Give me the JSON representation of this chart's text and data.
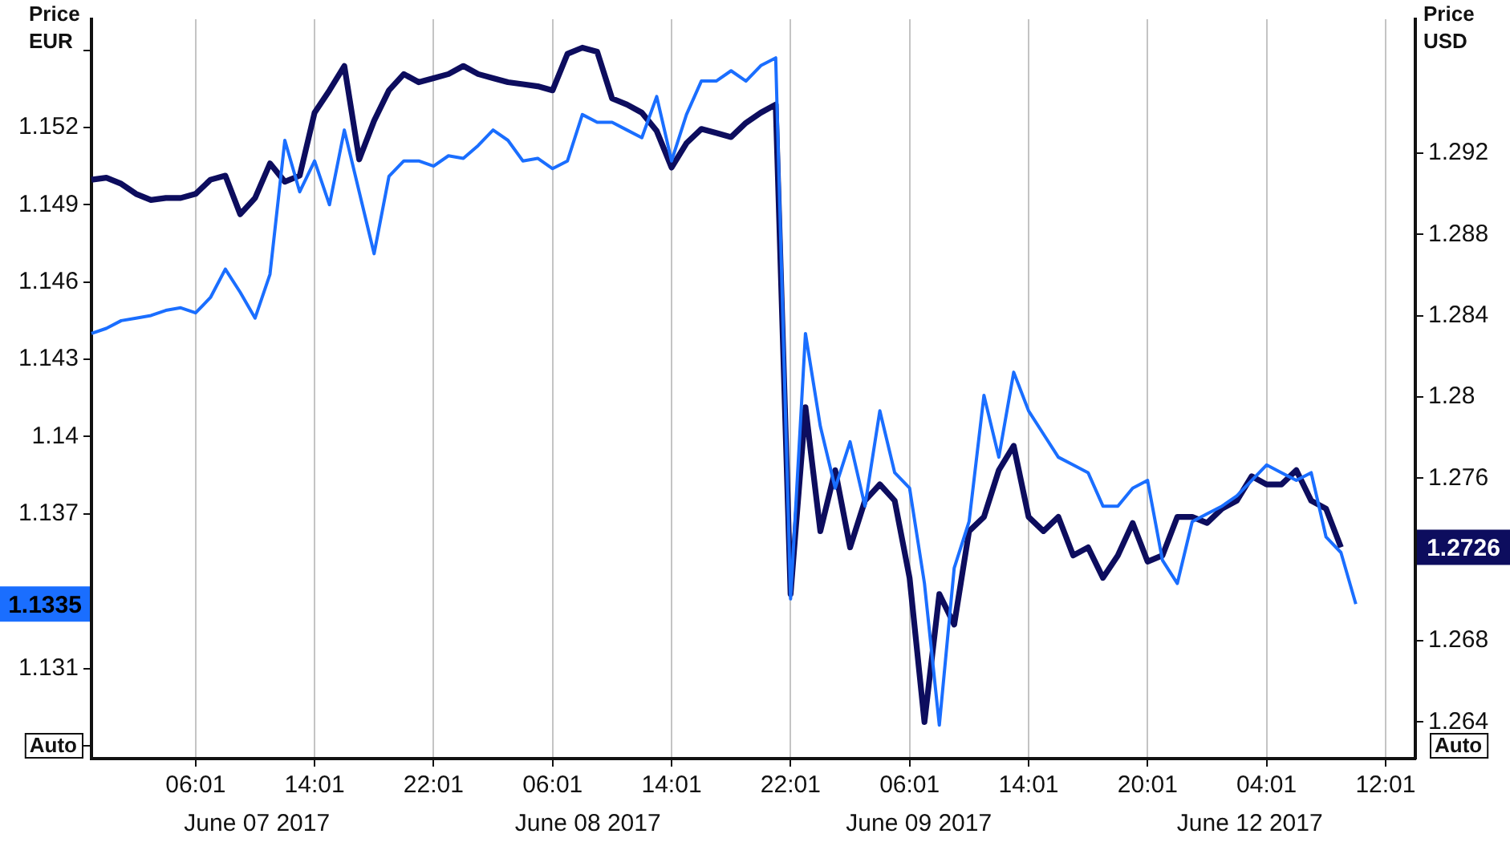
{
  "chart_data": {
    "type": "line",
    "ylabel": "Price EUR",
    "y2label": "Price USD",
    "categories": [
      null,
      null,
      null,
      null,
      null,
      null,
      null,
      "06:01",
      null,
      null,
      null,
      null,
      null,
      null,
      null,
      "14:01",
      null,
      null,
      null,
      null,
      null,
      null,
      null,
      "22:01",
      null,
      null,
      null,
      null,
      null,
      null,
      null,
      "06:01",
      null,
      null,
      null,
      null,
      null,
      null,
      null,
      "14:01",
      null,
      null,
      null,
      null,
      null,
      null,
      null,
      "22:01",
      null,
      null,
      null,
      null,
      null,
      null,
      null,
      "06:01",
      null,
      null,
      null,
      null,
      null,
      null,
      null,
      "14:01",
      null,
      null,
      null,
      null,
      null,
      null,
      null,
      "20:01",
      null,
      null,
      null,
      null,
      null,
      null,
      null,
      "04:01",
      null,
      null,
      null,
      null,
      null,
      null,
      null,
      "12:01",
      null,
      null
    ],
    "ylim": [
      1.1275,
      1.1562
    ],
    "yticks": [
      {
        "value": 1.128,
        "label": null
      },
      1.131,
      {
        "value": 1.134,
        "label": null
      },
      1.137,
      1.14,
      1.143,
      1.146,
      1.149,
      1.152,
      {
        "value": 1.155,
        "label": null
      }
    ],
    "y2lim": [
      1.2622,
      1.2986
    ],
    "y2ticks": [
      1.264,
      1.268,
      1.276,
      1.28,
      1.284,
      1.288,
      1.292
    ],
    "grid": "x",
    "series": [
      {
        "color": "#1a6eff",
        "axis": "y",
        "values": [
          1.144,
          1.1442,
          1.1445,
          1.1446,
          1.1447,
          1.1449,
          1.145,
          1.1448,
          1.1454,
          1.1465,
          1.1456,
          1.1446,
          1.1463,
          1.1515,
          1.1495,
          1.1507,
          1.149,
          1.1519,
          1.1495,
          1.1471,
          1.1501,
          1.1507,
          1.1507,
          1.1505,
          1.1509,
          1.1508,
          1.1513,
          1.1519,
          1.1515,
          1.1507,
          1.1508,
          1.1504,
          1.1507,
          1.1525,
          1.1522,
          1.1522,
          1.1519,
          1.1516,
          1.1532,
          1.1507,
          1.1525,
          1.1538,
          1.1538,
          1.1542,
          1.1538,
          1.1544,
          1.1547,
          1.1337,
          1.144,
          1.1404,
          1.138,
          1.1398,
          1.1373,
          1.141,
          1.1386,
          1.138,
          1.1343,
          1.1288,
          1.1349,
          1.1367,
          1.1416,
          1.1392,
          1.1425,
          1.141,
          1.1401,
          1.1392,
          1.1389,
          1.1386,
          1.1373,
          1.1373,
          1.138,
          1.1383,
          1.1352,
          1.1343,
          1.1367,
          1.137,
          1.1373,
          1.1377,
          1.1383,
          1.1389,
          1.1386,
          1.1383,
          1.1386,
          1.1361,
          1.1355,
          1.1335,
          null,
          null,
          null,
          null
        ]
      },
      {
        "color": "#0d0d5e",
        "axis": "y2",
        "values": [
          1.2907,
          1.2908,
          1.2905,
          1.29,
          1.2897,
          1.2898,
          1.2898,
          1.29,
          1.2907,
          1.2909,
          1.289,
          1.2898,
          1.2915,
          1.2906,
          1.2909,
          1.294,
          1.2951,
          1.2963,
          1.2917,
          1.2936,
          1.2951,
          1.2959,
          1.2955,
          1.2957,
          1.2959,
          1.2963,
          1.2959,
          1.2957,
          1.2955,
          1.2954,
          1.2953,
          1.2951,
          1.2969,
          1.2972,
          1.297,
          1.2947,
          1.2944,
          1.294,
          1.2931,
          1.2913,
          1.2925,
          1.2932,
          1.293,
          1.2928,
          1.2935,
          1.294,
          1.2944,
          1.2703,
          1.2795,
          1.2734,
          1.2764,
          1.2726,
          1.2749,
          1.2757,
          1.2749,
          1.2711,
          1.264,
          1.2703,
          1.2688,
          1.2734,
          1.2741,
          1.2764,
          1.2776,
          1.2741,
          1.2734,
          1.2741,
          1.2722,
          1.2726,
          1.2711,
          1.2722,
          1.2738,
          1.2719,
          1.2722,
          1.2741,
          1.2741,
          1.2738,
          1.2745,
          1.2749,
          1.2761,
          1.2757,
          1.2757,
          1.2764,
          1.2749,
          1.2745,
          1.2726,
          null,
          null,
          null,
          null,
          null
        ]
      }
    ],
    "annotations": [
      "1.1335",
      "1.2726",
      "June 07 2017",
      "June 08 2017",
      "June 09 2017",
      "June 12 2017",
      "Auto",
      "Auto"
    ]
  }
}
